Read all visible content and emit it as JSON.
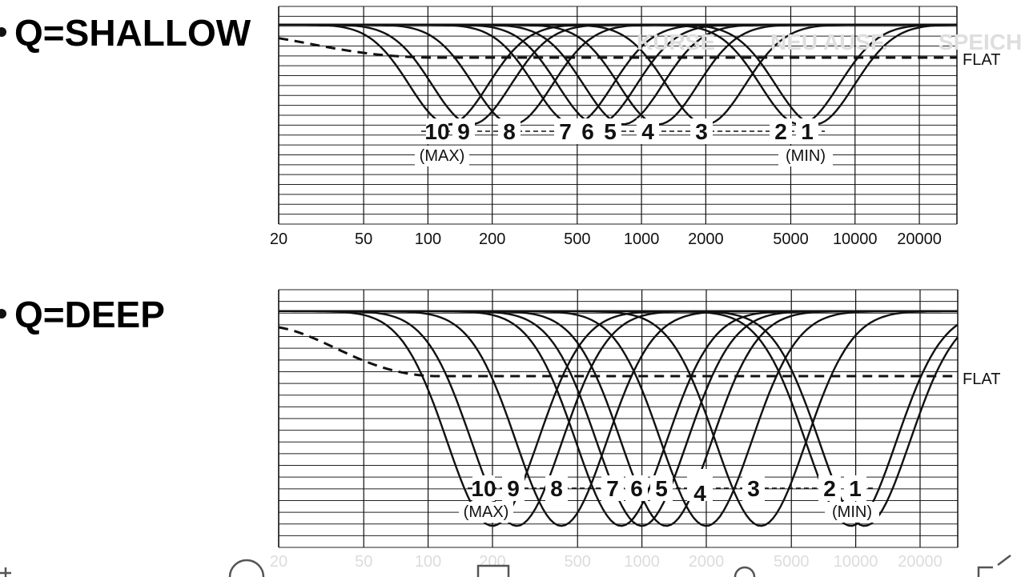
{
  "overlay": {
    "ghost_text": [
      "KURSE",
      "NEU AUSF.",
      "SPEICH"
    ]
  },
  "chart_data": [
    {
      "type": "line",
      "title": "Q=SHALLOW",
      "x_scale": "log",
      "x_tick_labels": [
        "20",
        "50",
        "100",
        "200",
        "500",
        "1000",
        "2000",
        "5000",
        "10000",
        "20000"
      ],
      "xlim": [
        20,
        30000
      ],
      "ylim": [
        -22,
        2
      ],
      "grid": true,
      "reference_line": {
        "label": "FLAT",
        "style": "dashed"
      },
      "series": [
        {
          "name": "10",
          "center": 125,
          "depth": 11
        },
        {
          "name": "9",
          "center": 160,
          "depth": 11
        },
        {
          "name": "8",
          "center": 250,
          "depth": 11
        },
        {
          "name": "7",
          "center": 480,
          "depth": 11
        },
        {
          "name": "6",
          "center": 620,
          "depth": 11
        },
        {
          "name": "5",
          "center": 820,
          "depth": 11
        },
        {
          "name": "4",
          "center": 1200,
          "depth": 11
        },
        {
          "name": "3",
          "center": 2000,
          "depth": 11
        },
        {
          "name": "2",
          "center": 5500,
          "depth": 11
        },
        {
          "name": "1",
          "center": 6500,
          "depth": 11
        }
      ],
      "band_labels": [
        "10",
        "9",
        "8",
        "7",
        "6",
        "5",
        "4",
        "3",
        "2",
        "1"
      ],
      "sub_labels": [
        "(MAX)",
        "(MIN)"
      ]
    },
    {
      "type": "line",
      "title": "Q=DEEP",
      "x_scale": "log",
      "x_tick_labels": [
        "20",
        "50",
        "100",
        "200",
        "500",
        "1000",
        "2000",
        "5000",
        "10000",
        "20000"
      ],
      "xlim": [
        20,
        30000
      ],
      "ylim": [
        -22,
        2
      ],
      "grid": true,
      "reference_line": {
        "label": "FLAT",
        "style": "dashed"
      },
      "series": [
        {
          "name": "10",
          "center": 200,
          "depth": 20
        },
        {
          "name": "9",
          "center": 260,
          "depth": 20
        },
        {
          "name": "8",
          "center": 420,
          "depth": 20
        },
        {
          "name": "7",
          "center": 800,
          "depth": 20
        },
        {
          "name": "6",
          "center": 1000,
          "depth": 20
        },
        {
          "name": "5",
          "center": 1300,
          "depth": 20
        },
        {
          "name": "4",
          "center": 2000,
          "depth": 20
        },
        {
          "name": "3",
          "center": 3600,
          "depth": 20
        },
        {
          "name": "2",
          "center": 9500,
          "depth": 20
        },
        {
          "name": "1",
          "center": 11000,
          "depth": 20
        }
      ],
      "band_labels": [
        "10",
        "9",
        "8",
        "7",
        "6",
        "5",
        "4",
        "3",
        "2",
        "1"
      ],
      "sub_labels": [
        "(MAX)",
        "(MIN)"
      ]
    }
  ]
}
